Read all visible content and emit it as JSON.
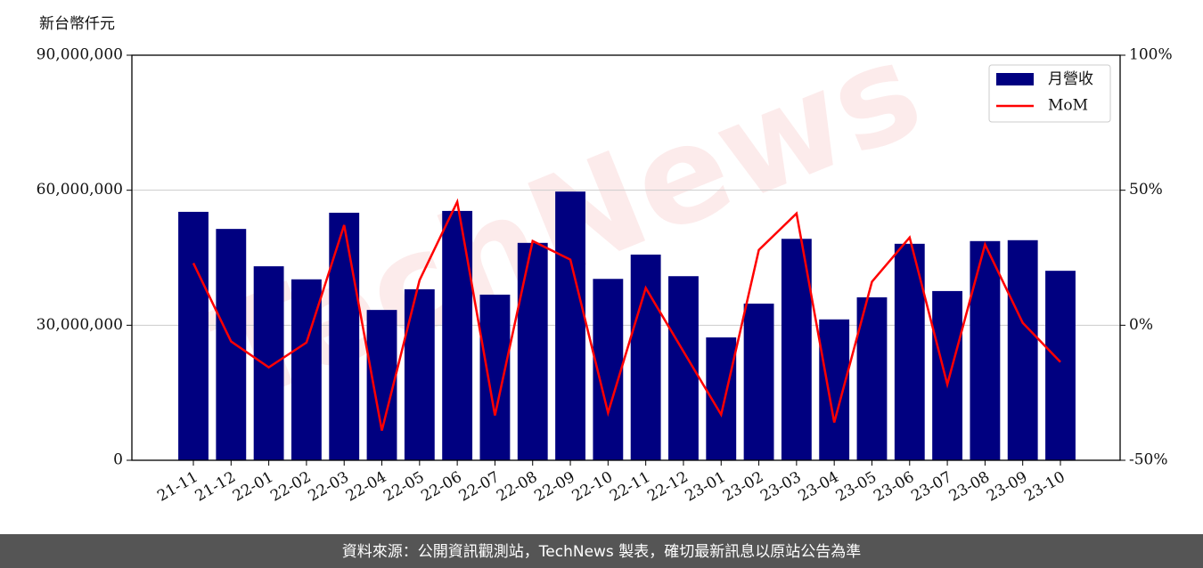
{
  "chart_data": {
    "type": "bar_line",
    "y_label": "新台幣仟元",
    "watermark": "TechNews",
    "source": "資料來源：公開資訊觀測站，TechNews 製表，確切最新訊息以原站公告為準",
    "categories": [
      "21-11",
      "21-12",
      "22-01",
      "22-02",
      "22-03",
      "22-04",
      "22-05",
      "22-06",
      "22-07",
      "22-08",
      "22-09",
      "22-10",
      "22-11",
      "22-12",
      "23-01",
      "23-02",
      "23-03",
      "23-04",
      "23-05",
      "23-06",
      "23-07",
      "23-08",
      "23-09",
      "23-10"
    ],
    "series": [
      {
        "name": "月營收",
        "type": "bar",
        "color": "#000080",
        "values": [
          55200000,
          51400000,
          43100000,
          40200000,
          55000000,
          33400000,
          38000000,
          55400000,
          36800000,
          48300000,
          59700000,
          40300000,
          45700000,
          40900000,
          27300000,
          34800000,
          49200000,
          31300000,
          36200000,
          48100000,
          37600000,
          48700000,
          48900000,
          42100000
        ]
      },
      {
        "name": "MoM",
        "type": "line",
        "axis": "y2",
        "color": "#ff0000",
        "values": [
          23.0,
          -6.0,
          -15.6,
          -6.4,
          37.1,
          -39.0,
          16.7,
          45.7,
          -33.4,
          31.2,
          24.3,
          -32.4,
          13.8,
          -9.7,
          -33.1,
          27.9,
          41.4,
          -36.0,
          16.1,
          32.5,
          -21.9,
          29.9,
          0.9,
          -13.6
        ]
      }
    ],
    "ylim": [
      0,
      90000000
    ],
    "yticks": [
      0,
      {
        "value": 30000000,
        "label": "30,000,000"
      },
      {
        "value": 60000000,
        "label": "60,000,000"
      },
      {
        "value": 90000000,
        "label": "90,000,000"
      }
    ],
    "y2lim": [
      -50,
      100
    ],
    "y2ticks": [
      {
        "value": -50,
        "label": "-50%"
      },
      {
        "value": 0,
        "label": "0%"
      },
      {
        "value": 50,
        "label": "50%"
      },
      {
        "value": 100,
        "label": "100%"
      }
    ],
    "grid": true,
    "legend": "upper right"
  }
}
